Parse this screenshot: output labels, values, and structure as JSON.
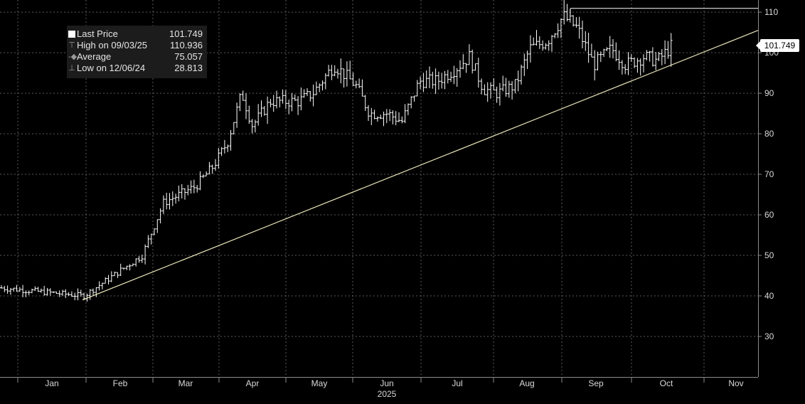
{
  "legend": {
    "last_label": "Last Price",
    "last_value": "101.749",
    "high_label": "High on 09/03/25",
    "high_value": "110.936",
    "avg_label": "Average",
    "avg_value": "75.057",
    "low_label": "Low on 12/06/24",
    "low_value": "28.813"
  },
  "last_price_tag": "101.749",
  "chart_data": {
    "type": "line",
    "title": "",
    "xlabel": "2025",
    "ylabel": "",
    "ylim": [
      20,
      113
    ],
    "yticks": [
      30,
      40,
      50,
      60,
      70,
      80,
      90,
      100,
      110
    ],
    "x_tick_labels": [
      "Jan",
      "Feb",
      "Mar",
      "Apr",
      "May",
      "Jun",
      "Jul",
      "Aug",
      "Sep",
      "Oct",
      "Nov"
    ],
    "year_label": "2025",
    "grid": true,
    "legend_position": "top-left",
    "colors": {
      "price": "#ffffff",
      "trend": "#e8e4b8",
      "grid": "#5a5a5a",
      "axis_text": "#d9d9d9"
    },
    "price_series_description": "OHLC bars, approx trading days, monthly anchor prices",
    "month_anchor_values": [
      {
        "month": "Jan",
        "value": 42
      },
      {
        "month": "Feb",
        "value": 45
      },
      {
        "month": "Mar",
        "value": 65
      },
      {
        "month": "Apr",
        "value": 85
      },
      {
        "month": "May",
        "value": 92
      },
      {
        "month": "Jun",
        "value": 85
      },
      {
        "month": "Jul",
        "value": 95
      },
      {
        "month": "Aug",
        "value": 100
      },
      {
        "month": "Sep",
        "value": 100
      },
      {
        "month": "Oct",
        "value": 101.749
      }
    ],
    "high_value": 110.936,
    "trendline": {
      "start": {
        "month": "Jan",
        "value": 39
      },
      "end": {
        "month": "Nov",
        "value": 105.5
      }
    }
  }
}
